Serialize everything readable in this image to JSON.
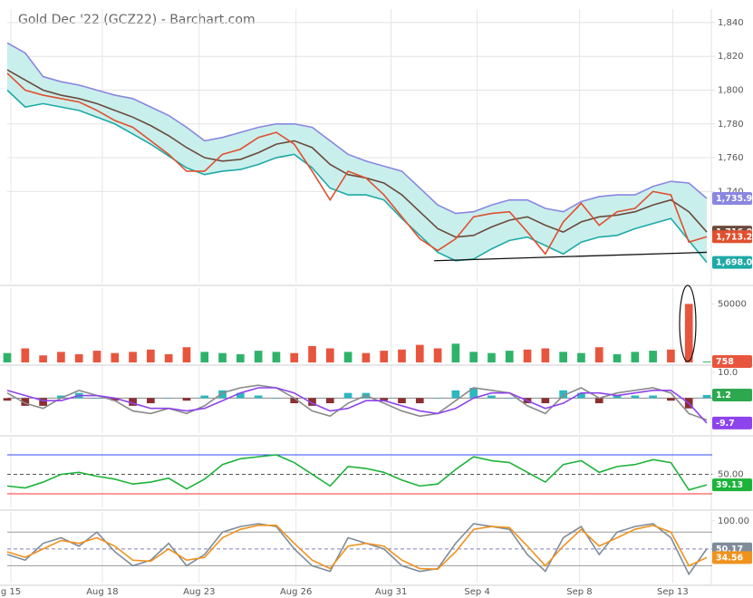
{
  "chart_data": [
    {
      "type": "line",
      "title": "Gold Dec '22 (GCZ22) - Barchart.com",
      "x": [
        0,
        1,
        2,
        3,
        4,
        5,
        6,
        7,
        8,
        9,
        10,
        11,
        12,
        13,
        14,
        15,
        16,
        17,
        18,
        19,
        20,
        21,
        22,
        23,
        24,
        25,
        26,
        27,
        28,
        29,
        30,
        31,
        32,
        33,
        34,
        35,
        36,
        37,
        38,
        39
      ],
      "xlim": [
        0,
        39
      ],
      "xticks": [
        {
          "value": 0.2,
          "label": "g 15"
        },
        {
          "value": 5.3,
          "label": "Aug 18"
        },
        {
          "value": 10.7,
          "label": "Aug 23"
        },
        {
          "value": 16.1,
          "label": "Aug 26"
        },
        {
          "value": 21.4,
          "label": "Aug 31"
        },
        {
          "value": 26.2,
          "label": "Sep 4"
        },
        {
          "value": 31.9,
          "label": "Sep 8"
        },
        {
          "value": 37.1,
          "label": "Sep 13"
        }
      ],
      "ylim": [
        1686,
        1848
      ],
      "yticks": [
        {
          "value": 1740,
          "label": "1,740"
        },
        {
          "value": 1760,
          "label": "1,760"
        },
        {
          "value": 1780,
          "label": "1,780"
        },
        {
          "value": 1800,
          "label": "1,800"
        },
        {
          "value": 1820,
          "label": "1,820"
        },
        {
          "value": 1840,
          "label": "1,840"
        }
      ],
      "grid": true,
      "band_fill": "#c9efec",
      "series": [
        {
          "type": "line",
          "color": "#8a86e0",
          "values": [
            1828,
            1822,
            1808,
            1805,
            1803,
            1800,
            1797,
            1795,
            1790,
            1785,
            1778,
            1770,
            1772,
            1775,
            1778,
            1780,
            1780,
            1778,
            1770,
            1762,
            1758,
            1755,
            1752,
            1742,
            1732,
            1727,
            1728,
            1732,
            1735,
            1735,
            1730,
            1728,
            1734,
            1737,
            1738,
            1738,
            1743,
            1746,
            1745,
            1735.9
          ],
          "value_labels": [
            null,
            null,
            null,
            null,
            null,
            null,
            null,
            null,
            null,
            null,
            null,
            null,
            null,
            null,
            null,
            null,
            null,
            null,
            null,
            null,
            null,
            null,
            null,
            null,
            null,
            null,
            null,
            null,
            null,
            null,
            null,
            null,
            null,
            null,
            null,
            null,
            null,
            null,
            null,
            "1,735.9"
          ]
        },
        {
          "type": "line",
          "color": "#1ea9a6",
          "values": [
            1800,
            1790,
            1792,
            1790,
            1788,
            1784,
            1780,
            1774,
            1768,
            1761,
            1754,
            1750,
            1752,
            1753,
            1756,
            1760,
            1762,
            1754,
            1742,
            1738,
            1738,
            1735,
            1724,
            1714,
            1704,
            1699,
            1700,
            1706,
            1711,
            1713,
            1708,
            1703,
            1710,
            1713,
            1714,
            1718,
            1721,
            1724,
            1711,
            1698.0
          ],
          "value_labels": [
            null,
            null,
            null,
            null,
            null,
            null,
            null,
            null,
            null,
            null,
            null,
            null,
            null,
            null,
            null,
            null,
            null,
            null,
            null,
            null,
            null,
            null,
            null,
            null,
            null,
            null,
            null,
            null,
            null,
            null,
            null,
            null,
            null,
            null,
            null,
            null,
            null,
            null,
            null,
            "1,698.0"
          ]
        },
        {
          "type": "line",
          "color": "#6b4a3c",
          "values": [
            1812,
            1806,
            1800,
            1797,
            1795,
            1792,
            1788,
            1784,
            1779,
            1773,
            1766,
            1760,
            1758,
            1759,
            1763,
            1768,
            1770,
            1766,
            1756,
            1750,
            1748,
            1745,
            1738,
            1728,
            1718,
            1713,
            1714,
            1719,
            1723,
            1725,
            1720,
            1716,
            1722,
            1725,
            1726,
            1728,
            1732,
            1735,
            1728,
            1716.0
          ],
          "value_labels": [
            null,
            null,
            null,
            null,
            null,
            null,
            null,
            null,
            null,
            null,
            null,
            null,
            null,
            null,
            null,
            null,
            null,
            null,
            null,
            null,
            null,
            null,
            null,
            null,
            null,
            null,
            null,
            null,
            null,
            null,
            null,
            null,
            null,
            null,
            null,
            null,
            null,
            null,
            null,
            "1,716.0"
          ]
        },
        {
          "type": "line",
          "color": "#e0502f",
          "values": [
            1810,
            1800,
            1797,
            1795,
            1793,
            1788,
            1782,
            1778,
            1770,
            1762,
            1752,
            1752,
            1762,
            1765,
            1772,
            1775,
            1768,
            1752,
            1735,
            1752,
            1748,
            1738,
            1725,
            1712,
            1705,
            1712,
            1725,
            1727,
            1728,
            1716,
            1703,
            1722,
            1733,
            1720,
            1728,
            1730,
            1740,
            1738,
            1710,
            1713.2
          ],
          "value_labels": [
            null,
            null,
            null,
            null,
            null,
            null,
            null,
            null,
            null,
            null,
            null,
            null,
            null,
            null,
            null,
            null,
            null,
            null,
            null,
            null,
            null,
            null,
            null,
            null,
            null,
            null,
            null,
            null,
            null,
            null,
            null,
            null,
            null,
            null,
            null,
            null,
            null,
            null,
            null,
            "1,713.2"
          ]
        }
      ],
      "trendline": {
        "x": [
          23.8,
          39
        ],
        "values": [
          1699,
          1704
        ],
        "color": "#111111"
      }
    },
    {
      "type": "bar",
      "ylim": [
        0,
        63500
      ],
      "yticks": [
        50000
      ],
      "grid": false,
      "series": [
        {
          "type": "bar",
          "color": "#2fb36b",
          "down_color": "#e8553e",
          "values": [
            8000,
            12000,
            6000,
            9000,
            7000,
            10000,
            8000,
            9000,
            11000,
            7000,
            13000,
            9000,
            8000,
            7000,
            10000,
            9000,
            8000,
            14000,
            12000,
            9000,
            8000,
            10000,
            11000,
            15000,
            12000,
            16000,
            9000,
            8000,
            10000,
            11000,
            12000,
            9000,
            8000,
            13000,
            7000,
            9000,
            10000,
            11000,
            50000,
            758
          ]
        }
      ]
    },
    {
      "type": "line",
      "ylim": [
        -13.6,
        12.8
      ],
      "yticks": [
        {
          "value": 10,
          "label": "10.0"
        }
      ],
      "grid": false,
      "levels": [
        0
      ],
      "level_colors": [
        "#888888"
      ],
      "series": [
        {
          "type": "bar",
          "color": "#2bb8c0",
          "down_color": "#8b2f2f",
          "tag_color": "#2ea84f",
          "values": [
            -1,
            -3,
            -3,
            1,
            2,
            0,
            -1,
            -3,
            -2,
            0,
            -1,
            1,
            3,
            2,
            1,
            0,
            -2,
            -3,
            -2,
            2,
            2,
            -1,
            -2,
            -2,
            0,
            3,
            4,
            1,
            0,
            -2,
            -2,
            3,
            2,
            -2,
            1,
            1,
            1,
            -1,
            -4,
            1.2
          ]
        },
        {
          "type": "line",
          "color": "#8a8a8a",
          "tag": false,
          "values": [
            2,
            -2,
            -4,
            0,
            3,
            1,
            -1,
            -5,
            -6,
            -4,
            -6,
            -3,
            2,
            4,
            5,
            4,
            0,
            -5,
            -7,
            -2,
            1,
            -2,
            -5,
            -7,
            -6,
            -1,
            4,
            3,
            2,
            -3,
            -6,
            1,
            4,
            0,
            2,
            3,
            4,
            2,
            -6,
            -8.5
          ]
        },
        {
          "type": "line",
          "color": "#8e44ec",
          "values": [
            3,
            1,
            -1,
            -1,
            1,
            1,
            0,
            -2,
            -4,
            -4,
            -5,
            -4,
            -1,
            2,
            4,
            4,
            2,
            -2,
            -5,
            -4,
            -1,
            -1,
            -3,
            -5,
            -6,
            -4,
            0,
            2,
            2,
            -1,
            -4,
            -2,
            2,
            2,
            1,
            2,
            3,
            3,
            -2,
            -9.7
          ]
        }
      ]
    },
    {
      "type": "line",
      "ylim": [
        16,
        88.6
      ],
      "yticks": [
        {
          "value": 50,
          "label": "50.00"
        }
      ],
      "grid": false,
      "levels": [
        70,
        50,
        30
      ],
      "level_colors": [
        "#2f4bff",
        "#555555",
        "#ff3030"
      ],
      "series": [
        {
          "type": "line",
          "color": "#1db33a",
          "values": [
            38,
            36,
            42,
            50,
            52,
            48,
            45,
            40,
            42,
            46,
            35,
            45,
            60,
            66,
            68,
            70,
            62,
            50,
            38,
            58,
            56,
            52,
            44,
            38,
            40,
            55,
            68,
            64,
            62,
            52,
            42,
            60,
            64,
            52,
            58,
            60,
            65,
            62,
            34,
            39.13
          ]
        }
      ]
    },
    {
      "type": "line",
      "ylim": [
        -10,
        116
      ],
      "yticks": [
        {
          "value": 100,
          "label": "100.00"
        }
      ],
      "grid": false,
      "levels": [
        80,
        50,
        20
      ],
      "level_colors": [
        "#999999",
        "#8080c0",
        "#999999"
      ],
      "series": [
        {
          "type": "line",
          "color": "#7f8c9a",
          "values": [
            40,
            30,
            60,
            70,
            55,
            80,
            45,
            20,
            30,
            60,
            20,
            40,
            80,
            90,
            95,
            90,
            50,
            20,
            10,
            70,
            60,
            50,
            20,
            10,
            15,
            60,
            95,
            90,
            85,
            40,
            10,
            70,
            90,
            40,
            80,
            90,
            95,
            70,
            5,
            50.17
          ]
        },
        {
          "type": "line",
          "color": "#f0921e",
          "values": [
            45,
            35,
            50,
            65,
            60,
            70,
            55,
            30,
            28,
            50,
            30,
            35,
            70,
            85,
            92,
            92,
            60,
            30,
            15,
            55,
            60,
            55,
            30,
            15,
            14,
            45,
            85,
            90,
            88,
            55,
            20,
            55,
            85,
            55,
            70,
            85,
            92,
            80,
            20,
            34.56
          ]
        }
      ]
    }
  ]
}
